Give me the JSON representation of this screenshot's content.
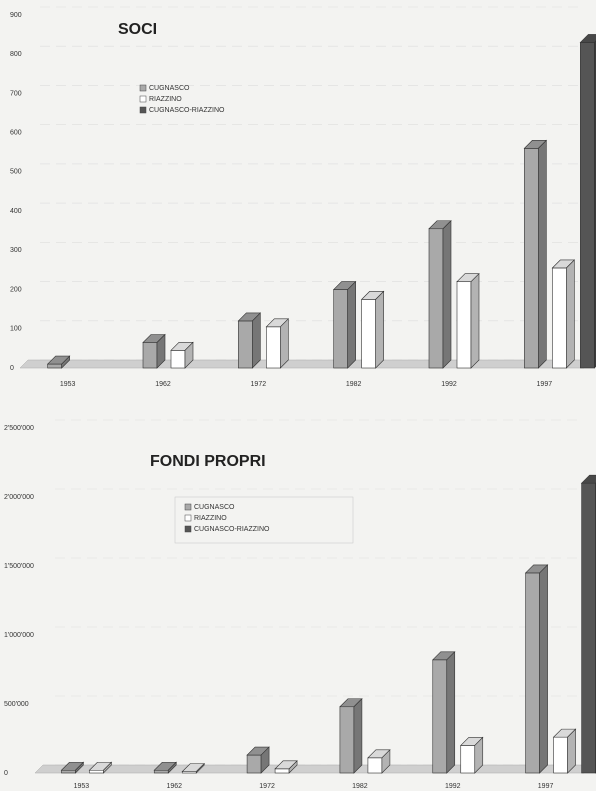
{
  "chart_data": [
    {
      "type": "bar3d",
      "title": "SOCI",
      "categories": [
        "1953",
        "1962",
        "1972",
        "1982",
        "1992",
        "1997"
      ],
      "series": [
        {
          "name": "CUGNASCO",
          "color": "#a9a9a9",
          "values": [
            10,
            65,
            120,
            200,
            355,
            560
          ]
        },
        {
          "name": "RIAZZINO",
          "color": "#ffffff",
          "values": [
            null,
            45,
            105,
            175,
            220,
            255
          ]
        },
        {
          "name": "CUGNASCO-RIAZZINO",
          "color": "#555555",
          "values": [
            null,
            null,
            null,
            null,
            null,
            830
          ]
        }
      ],
      "ylim": [
        0,
        900
      ],
      "yticks": [
        0,
        100,
        200,
        300,
        400,
        500,
        600,
        700,
        800,
        900
      ],
      "grid": true
    },
    {
      "type": "bar3d",
      "title": "FONDI PROPRI",
      "categories": [
        "1953",
        "1962",
        "1972",
        "1982",
        "1992",
        "1997"
      ],
      "series": [
        {
          "name": "CUGNASCO",
          "color": "#a9a9a9",
          "values": [
            20000,
            20000,
            130000,
            480000,
            820000,
            1450000
          ]
        },
        {
          "name": "RIAZZINO",
          "color": "#ffffff",
          "values": [
            20000,
            10000,
            30000,
            110000,
            200000,
            260000
          ]
        },
        {
          "name": "CUGNASCO-RIAZZINO",
          "color": "#555555",
          "values": [
            null,
            null,
            null,
            null,
            null,
            2100000
          ]
        }
      ],
      "ylim": [
        0,
        2500000
      ],
      "yticks": [
        0,
        {
          "value": 500000,
          "label": "500'000"
        },
        {
          "value": 1000000,
          "label": "1'000'000"
        },
        {
          "value": 1500000,
          "label": "1'500'000"
        },
        {
          "value": 2000000,
          "label": "2'000'000"
        },
        {
          "value": 2500000,
          "label": "2'500'000"
        }
      ],
      "grid": true
    }
  ]
}
